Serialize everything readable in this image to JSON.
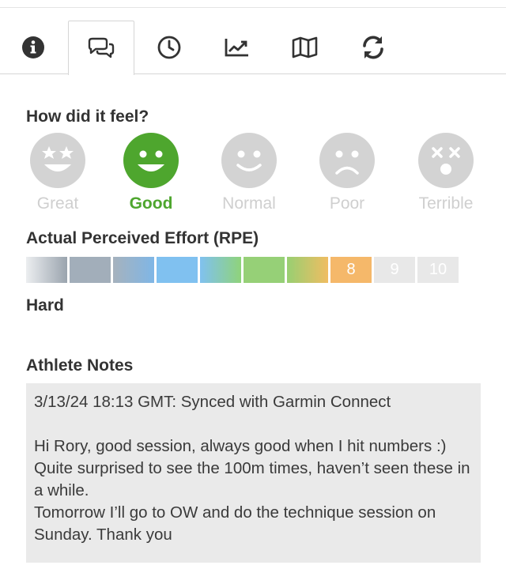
{
  "tabs": [
    {
      "icon": "info-icon",
      "active": false
    },
    {
      "icon": "comments-icon",
      "active": true
    },
    {
      "icon": "clock-icon",
      "active": false
    },
    {
      "icon": "line-chart-icon",
      "active": false
    },
    {
      "icon": "map-icon",
      "active": false
    },
    {
      "icon": "sync-icon",
      "active": false
    }
  ],
  "feel": {
    "title": "How did it feel?",
    "options": [
      {
        "label": "Great",
        "selected": false
      },
      {
        "label": "Good",
        "selected": true
      },
      {
        "label": "Normal",
        "selected": false
      },
      {
        "label": "Poor",
        "selected": false
      },
      {
        "label": "Terrible",
        "selected": false
      }
    ]
  },
  "rpe": {
    "title": "Actual Perceived Effort (RPE)",
    "value": 8,
    "level_label": "Hard",
    "segments": [
      "",
      "",
      "",
      "",
      "",
      "",
      "",
      "8",
      "9",
      "10"
    ]
  },
  "notes": {
    "title": "Athlete Notes",
    "text": "3/13/24 18:13 GMT: Synced with Garmin Connect\n\nHi Rory, good session, always good when I hit numbers :)\nQuite surprised to see the 100m times, haven’t seen these in a while.\nTomorrow I’ll go to OW and do the technique session on Sunday. Thank you"
  },
  "colors": {
    "selected_green": "#4ea62e",
    "inactive_grey": "#d2d2d2",
    "rpe_active_orange": "#f5b86a",
    "rpe_inactive": "#e8e8e8"
  }
}
